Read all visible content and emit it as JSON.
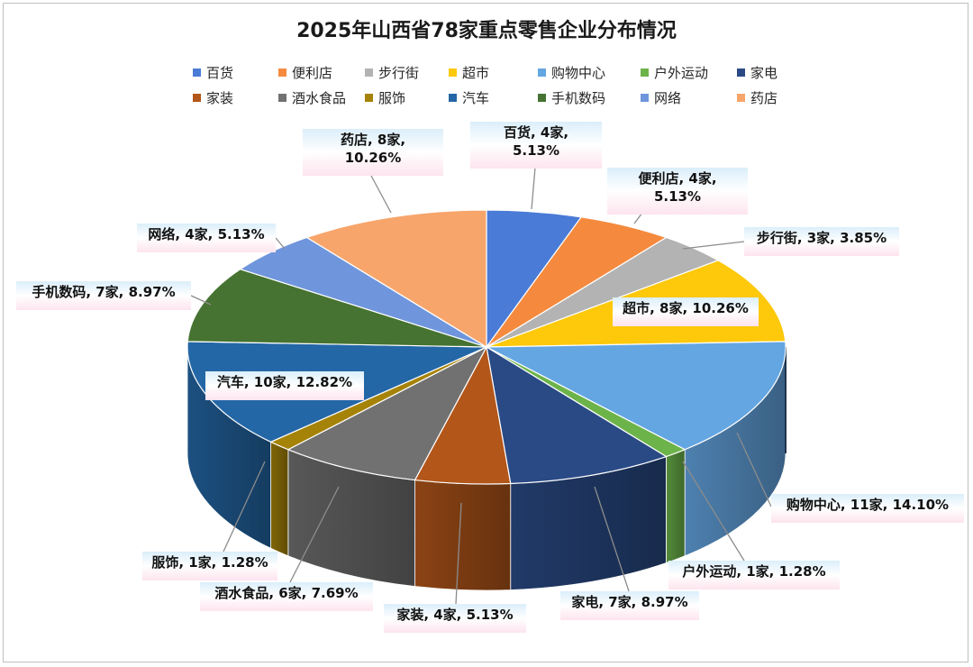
{
  "chart_data": {
    "type": "pie",
    "title": "2025年山西省78家重点零售企业分布情况",
    "unit": "家",
    "total": 78,
    "legend_placement": "top",
    "style": "3d-exploded-none",
    "slices": [
      {
        "name": "百货",
        "value": 4,
        "percent": "5.13%",
        "color": "#4a7bd6",
        "label": "百货, 4家,",
        "label2": "5.13%"
      },
      {
        "name": "便利店",
        "value": 4,
        "percent": "5.13%",
        "color": "#f58a3e",
        "label": "便利店, 4家,",
        "label2": "5.13%"
      },
      {
        "name": "步行街",
        "value": 3,
        "percent": "3.85%",
        "color": "#b3b3b3",
        "label": "步行街, 3家, 3.85%"
      },
      {
        "name": "超市",
        "value": 8,
        "percent": "10.26%",
        "color": "#fec80b",
        "label": "超市, 8家, 10.26%"
      },
      {
        "name": "购物中心",
        "value": 11,
        "percent": "14.10%",
        "color": "#64a6e2",
        "label": "购物中心, 11家, 14.10%"
      },
      {
        "name": "户外运动",
        "value": 1,
        "percent": "1.28%",
        "color": "#6cb34a",
        "label": "户外运动, 1家, 1.28%"
      },
      {
        "name": "家电",
        "value": 7,
        "percent": "8.97%",
        "color": "#2a4a85",
        "label": "家电, 7家, 8.97%"
      },
      {
        "name": "家装",
        "value": 4,
        "percent": "5.13%",
        "color": "#b2561a",
        "label": "家装, 4家, 5.13%"
      },
      {
        "name": "酒水食品",
        "value": 6,
        "percent": "7.69%",
        "color": "#717171",
        "label": "酒水食品, 6家, 7.69%"
      },
      {
        "name": "服饰",
        "value": 1,
        "percent": "1.28%",
        "color": "#a58308",
        "label": "服饰, 1家, 1.28%"
      },
      {
        "name": "汽车",
        "value": 10,
        "percent": "12.82%",
        "color": "#2467a6",
        "label": "汽车, 10家, 12.82%"
      },
      {
        "name": "手机数码",
        "value": 7,
        "percent": "8.97%",
        "color": "#467331",
        "label": "手机数码, 7家, 8.97%"
      },
      {
        "name": "网络",
        "value": 4,
        "percent": "5.13%",
        "color": "#6f96dc",
        "label": "网络, 4家, 5.13%"
      },
      {
        "name": "药店",
        "value": 8,
        "percent": "10.26%",
        "color": "#f7a56b",
        "label": "药店, 8家,",
        "label2": "10.26%"
      }
    ]
  }
}
